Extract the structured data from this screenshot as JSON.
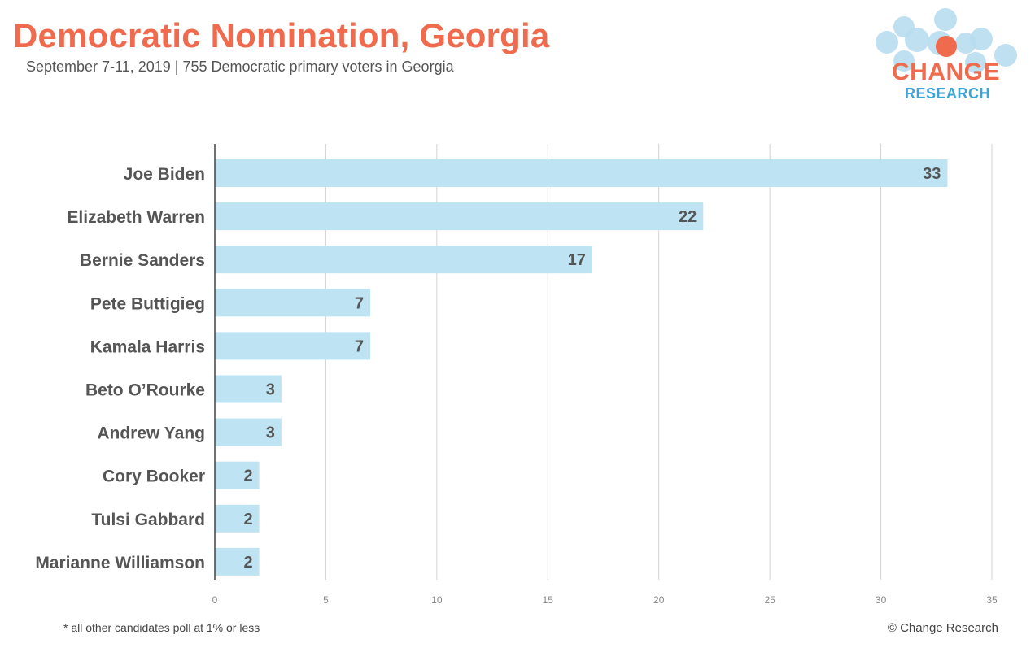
{
  "header": {
    "title": "Democratic Nomination, Georgia",
    "subtitle": "September 7-11, 2019  | 755 Democratic primary voters in Georgia"
  },
  "logo": {
    "word1": "CHANGE",
    "word2": "RESEARCH"
  },
  "footer": {
    "note": "* all other candidates poll at 1% or less",
    "copyright": "© Change Research"
  },
  "colors": {
    "title": "#F06B4E",
    "bar": "#BEE3F2",
    "grid": "#D3D3D3",
    "axis": "#444444",
    "value_label": "#555555"
  },
  "chart_data": {
    "type": "bar",
    "orientation": "horizontal",
    "categories": [
      "Joe Biden",
      "Elizabeth Warren",
      "Bernie Sanders",
      "Pete Buttigieg",
      "Kamala Harris",
      "Beto O’Rourke",
      "Andrew Yang",
      "Cory Booker",
      "Tulsi Gabbard",
      "Marianne Williamson"
    ],
    "values": [
      33,
      22,
      17,
      7,
      7,
      3,
      3,
      2,
      2,
      2
    ],
    "xlim": [
      0,
      35
    ],
    "x_ticks": [
      0,
      5,
      10,
      15,
      20,
      25,
      30,
      35
    ],
    "grid": true,
    "data_labels": true
  }
}
